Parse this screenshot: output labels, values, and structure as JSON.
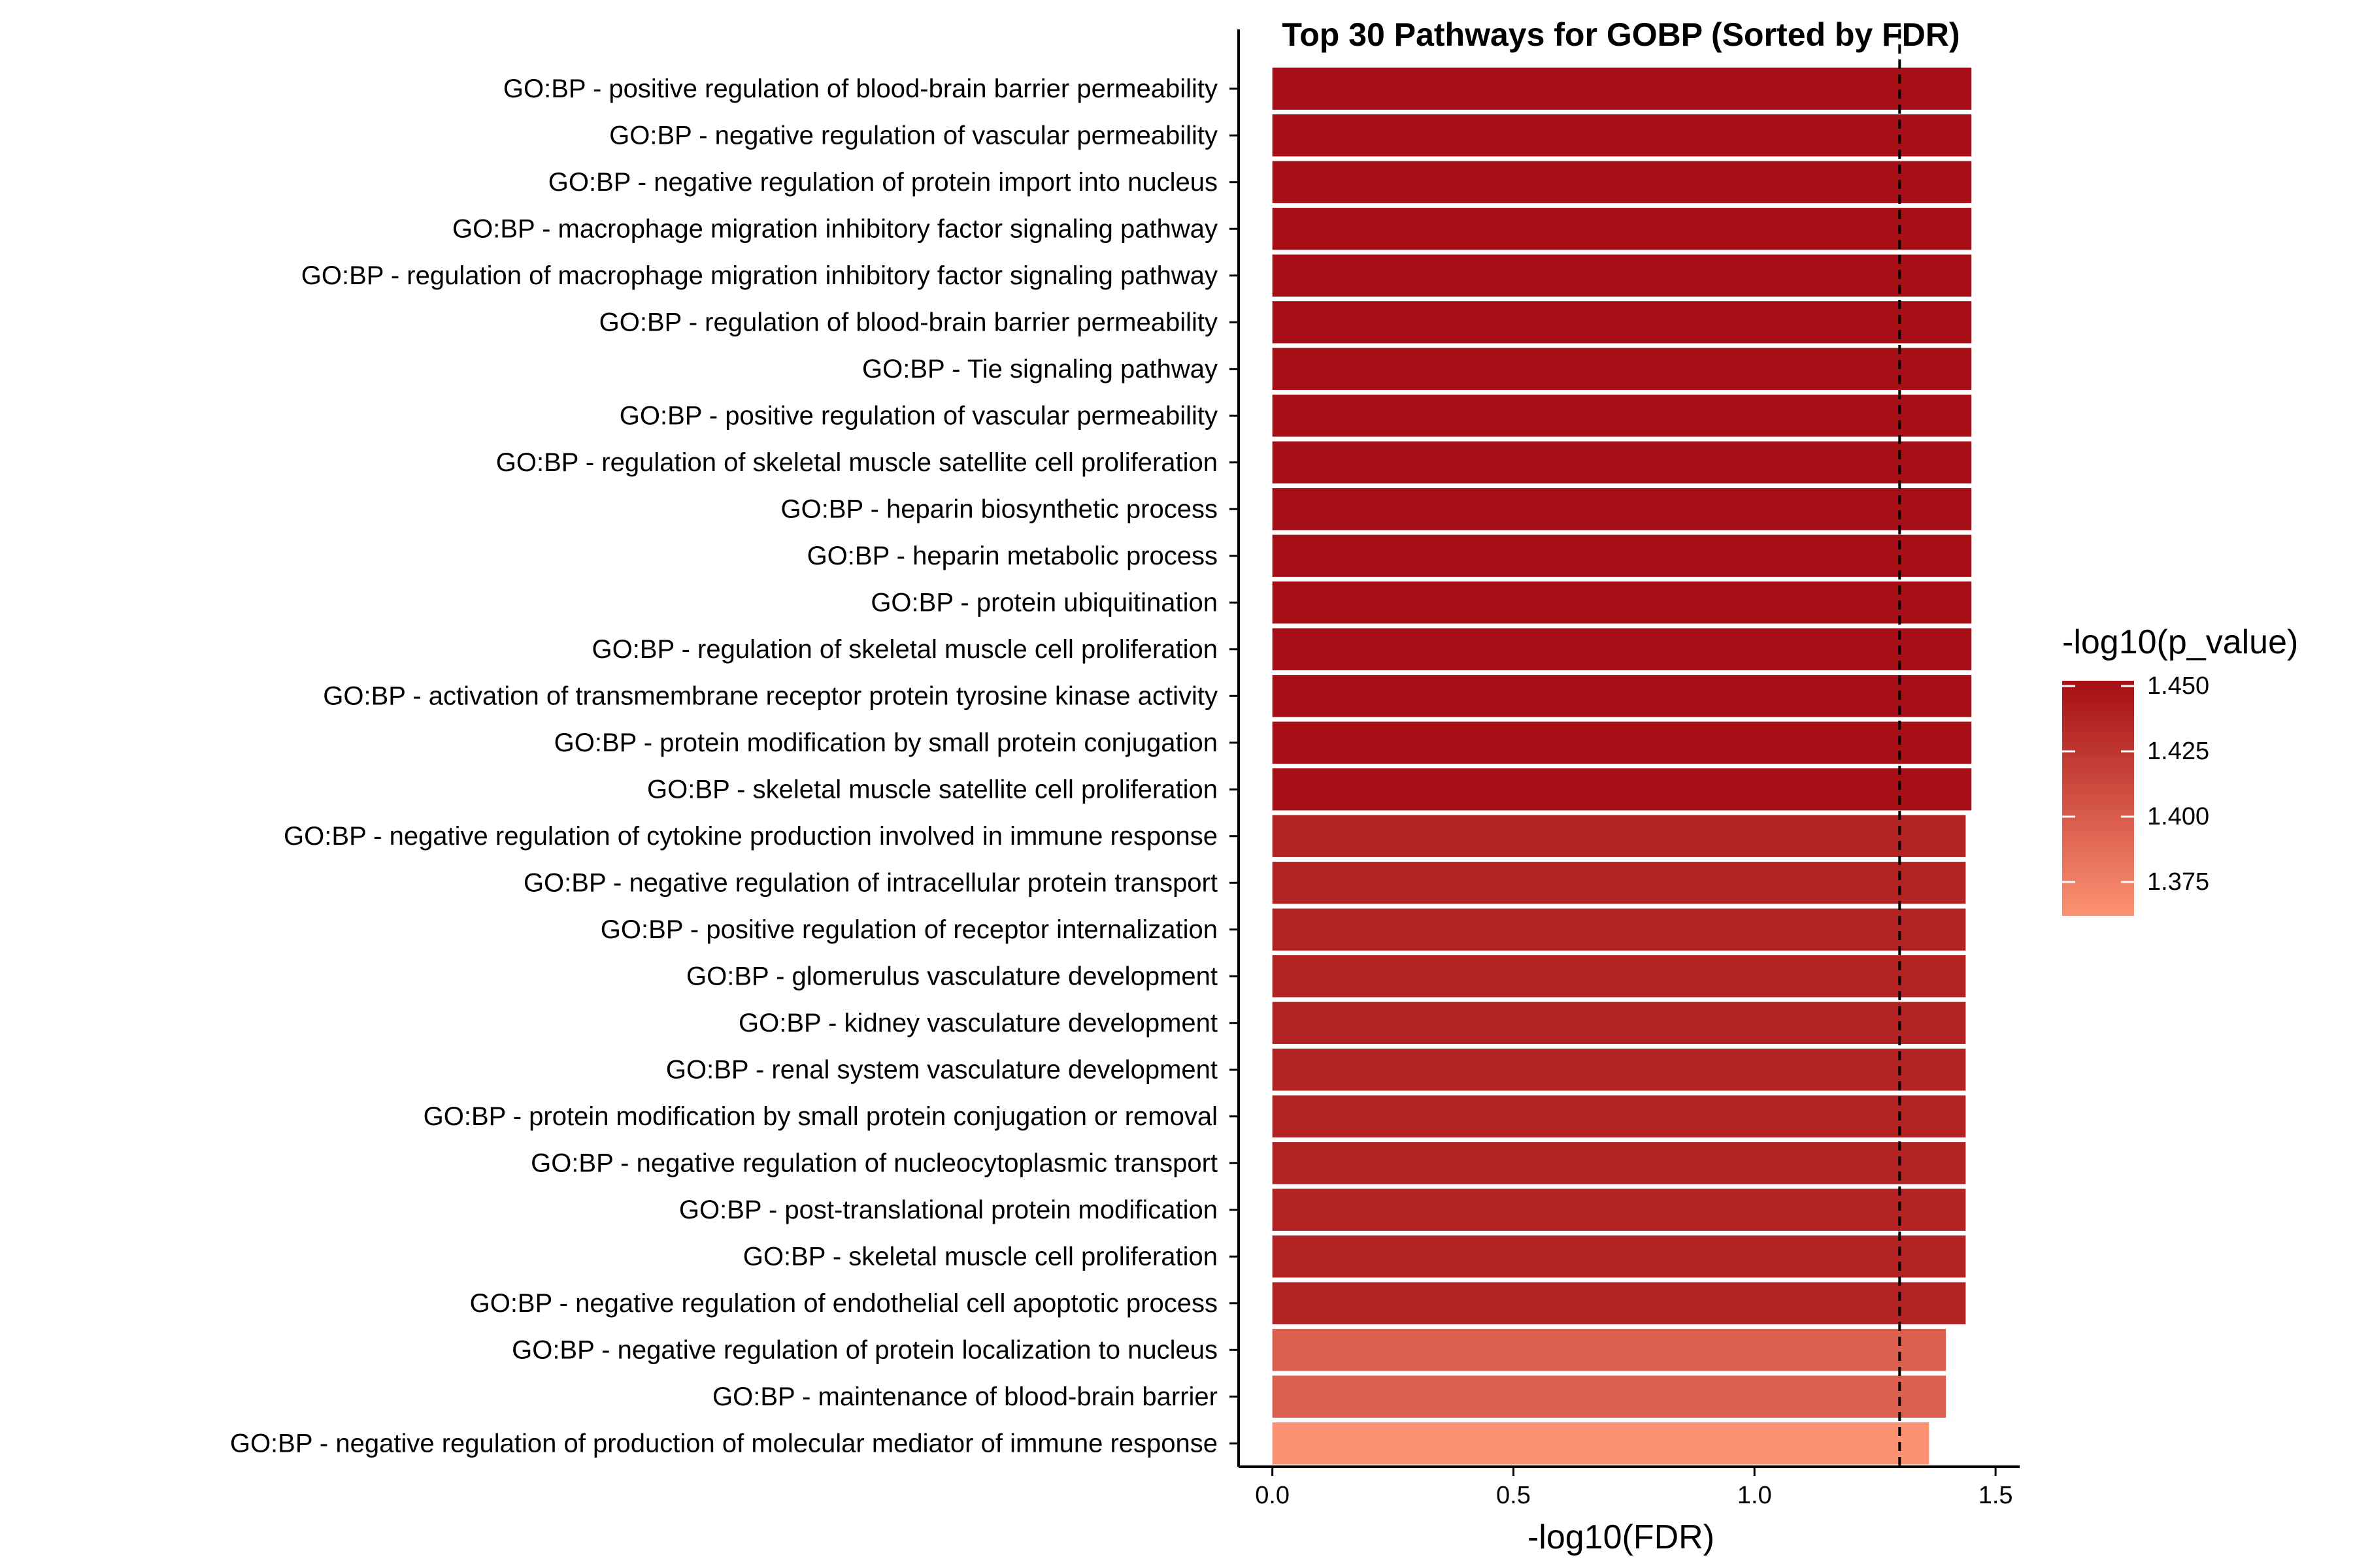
{
  "chart_data": {
    "type": "bar",
    "orientation": "horizontal",
    "title": "Top 30 Pathways for GOBP (Sorted by FDR)",
    "xlabel": "-log10(FDR)",
    "ylabel": "",
    "xlim": [
      -0.07,
      1.55
    ],
    "xticks": [
      "0.0",
      "0.5",
      "1.0",
      "1.5"
    ],
    "threshold_line": 1.301,
    "grid": false,
    "legend": {
      "title": "-log10(p_value)",
      "position": "right",
      "ticks": [
        "1.450",
        "1.425",
        "1.400",
        "1.375"
      ],
      "range": [
        1.362,
        1.452
      ],
      "color_low": "#fc9272",
      "color_high": "#a50f15"
    },
    "categories": [
      "GO:BP - positive regulation of blood-brain barrier permeability",
      "GO:BP - negative regulation of vascular permeability",
      "GO:BP - negative regulation of protein import into nucleus",
      "GO:BP - macrophage migration inhibitory factor signaling pathway",
      "GO:BP - regulation of macrophage migration inhibitory factor signaling pathway",
      "GO:BP - regulation of blood-brain barrier permeability",
      "GO:BP - Tie signaling pathway",
      "GO:BP - positive regulation of vascular permeability",
      "GO:BP - regulation of skeletal muscle satellite cell proliferation",
      "GO:BP - heparin biosynthetic process",
      "GO:BP - heparin metabolic process",
      "GO:BP - protein ubiquitination",
      "GO:BP - regulation of skeletal muscle cell proliferation",
      "GO:BP - activation of transmembrane receptor protein tyrosine kinase activity",
      "GO:BP - protein modification by small protein conjugation",
      "GO:BP - skeletal muscle satellite cell proliferation",
      "GO:BP - negative regulation of cytokine production involved in immune response",
      "GO:BP - negative regulation of intracellular protein transport",
      "GO:BP - positive regulation of receptor internalization",
      "GO:BP - glomerulus vasculature development",
      "GO:BP - kidney vasculature development",
      "GO:BP - renal system vasculature development",
      "GO:BP - protein modification by small protein conjugation or removal",
      "GO:BP - negative regulation of nucleocytoplasmic transport",
      "GO:BP - post-translational protein modification",
      "GO:BP - skeletal muscle cell proliferation",
      "GO:BP - negative regulation of endothelial cell apoptotic process",
      "GO:BP - negative regulation of protein localization to nucleus",
      "GO:BP - maintenance of blood-brain barrier",
      "GO:BP - negative regulation of production of molecular mediator of immune response"
    ],
    "values": [
      1.45,
      1.45,
      1.45,
      1.45,
      1.45,
      1.45,
      1.45,
      1.45,
      1.45,
      1.45,
      1.45,
      1.45,
      1.45,
      1.45,
      1.45,
      1.45,
      1.438,
      1.438,
      1.438,
      1.438,
      1.438,
      1.438,
      1.438,
      1.438,
      1.438,
      1.438,
      1.438,
      1.397,
      1.397,
      1.362
    ],
    "color_values": [
      1.452,
      1.452,
      1.452,
      1.452,
      1.452,
      1.452,
      1.452,
      1.452,
      1.452,
      1.452,
      1.452,
      1.452,
      1.452,
      1.452,
      1.452,
      1.452,
      1.438,
      1.438,
      1.438,
      1.438,
      1.438,
      1.438,
      1.438,
      1.438,
      1.438,
      1.438,
      1.438,
      1.397,
      1.397,
      1.362
    ]
  }
}
